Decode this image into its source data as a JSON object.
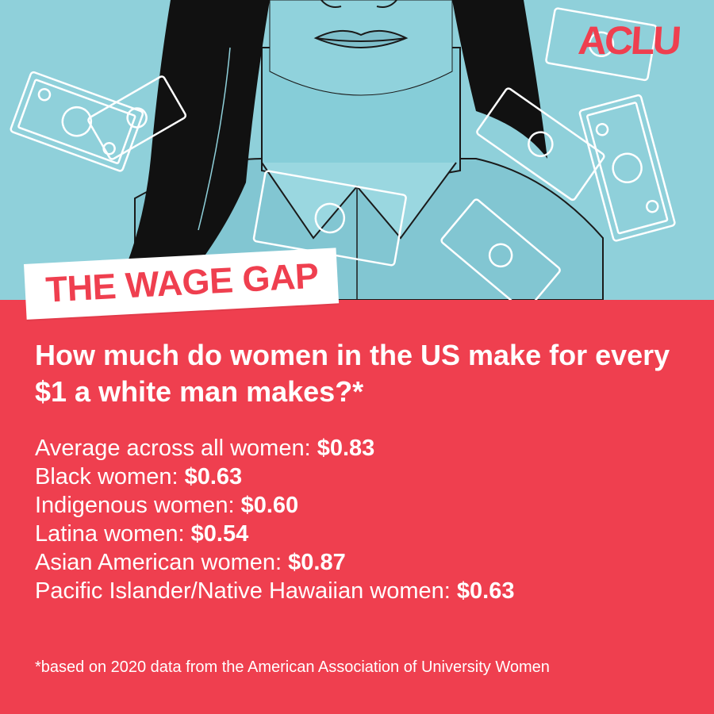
{
  "logo": "ACLU",
  "title": "THE WAGE GAP",
  "question": "How much do women in the US make for every $1 a white man makes?*",
  "stats": [
    {
      "label": "Average across all women: ",
      "value": "$0.83"
    },
    {
      "label": "Black women: ",
      "value": "$0.63"
    },
    {
      "label": "Indigenous women: ",
      "value": "$0.60"
    },
    {
      "label": "Latina women: ",
      "value": "$0.54"
    },
    {
      "label": "Asian American women: ",
      "value": "$0.87"
    },
    {
      "label": "Pacific Islander/Native Hawaiian women: ",
      "value": "$0.63"
    }
  ],
  "footnote": "*based on 2020 data from the American Association of University Women",
  "colors": {
    "background_red": "#ef3f4f",
    "illustration_blue": "#8fd0da",
    "hair": "#111111",
    "text": "#ffffff"
  },
  "illustration": {
    "subject": "woman-with-falling-dollar-bills",
    "icons": [
      "woman-portrait-icon",
      "dollar-bill-icon"
    ]
  }
}
